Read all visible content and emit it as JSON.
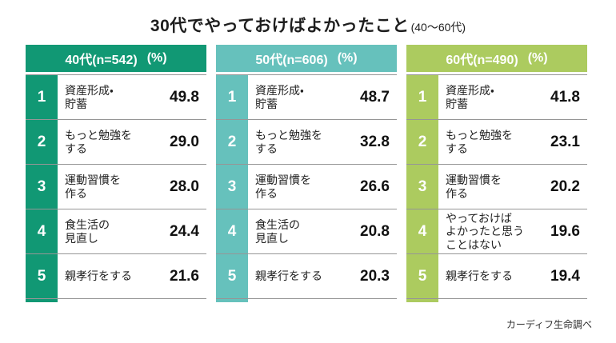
{
  "title": {
    "main": "30代でやっておけばよかったこと",
    "suffix": "(40〜60代)"
  },
  "source": "カーディフ生命調べ",
  "colors": {
    "group40_accent": "#119874",
    "group50_accent": "#66c1bc",
    "group60_accent": "#accb5f",
    "separator": "#969696",
    "header_text": "#ffffff",
    "body_text": "#222222"
  },
  "chart_data": {
    "type": "table",
    "title": "30代でやっておけばよかったこと (40〜60代)",
    "unit": "%",
    "source": "カーディフ生命調べ",
    "groups": [
      {
        "header": "40代(n=542)",
        "unit_label": "(%)",
        "n": 542,
        "accent": "#119874",
        "rows": [
          {
            "rank": "1",
            "label": "資産形成・\n貯蓄",
            "value": "49.8",
            "value_num": 49.8
          },
          {
            "rank": "2",
            "label": "もっと勉強を\nする",
            "value": "29.0",
            "value_num": 29.0
          },
          {
            "rank": "3",
            "label": "運動習慣を\n作る",
            "value": "28.0",
            "value_num": 28.0
          },
          {
            "rank": "4",
            "label": "食生活の\n見直し",
            "value": "24.4",
            "value_num": 24.4
          },
          {
            "rank": "5",
            "label": "親孝行をする",
            "value": "21.6",
            "value_num": 21.6
          }
        ]
      },
      {
        "header": "50代(n=606)",
        "unit_label": "(%)",
        "n": 606,
        "accent": "#66c1bc",
        "rows": [
          {
            "rank": "1",
            "label": "資産形成・\n貯蓄",
            "value": "48.7",
            "value_num": 48.7
          },
          {
            "rank": "2",
            "label": "もっと勉強を\nする",
            "value": "32.8",
            "value_num": 32.8
          },
          {
            "rank": "3",
            "label": "運動習慣を\n作る",
            "value": "26.6",
            "value_num": 26.6
          },
          {
            "rank": "4",
            "label": "食生活の\n見直し",
            "value": "20.8",
            "value_num": 20.8
          },
          {
            "rank": "5",
            "label": "親孝行をする",
            "value": "20.3",
            "value_num": 20.3
          }
        ]
      },
      {
        "header": "60代(n=490)",
        "unit_label": "(%)",
        "n": 490,
        "accent": "#accb5f",
        "rows": [
          {
            "rank": "1",
            "label": "資産形成・\n貯蓄",
            "value": "41.8",
            "value_num": 41.8
          },
          {
            "rank": "2",
            "label": "もっと勉強を\nする",
            "value": "23.1",
            "value_num": 23.1
          },
          {
            "rank": "3",
            "label": "運動習慣を\n作る",
            "value": "20.2",
            "value_num": 20.2
          },
          {
            "rank": "4",
            "label": "やっておけば\nよかったと思う\nことはない",
            "value": "19.6",
            "value_num": 19.6
          },
          {
            "rank": "5",
            "label": "親孝行をする",
            "value": "19.4",
            "value_num": 19.4
          }
        ]
      }
    ]
  }
}
